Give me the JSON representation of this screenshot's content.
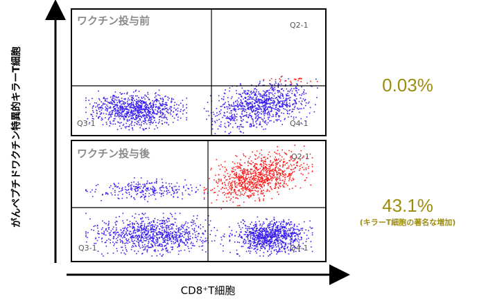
{
  "chart_data": [
    {
      "type": "scatter",
      "title": "ワクチン投与前",
      "xlabel": "CD8⁺T細胞",
      "ylabel": "がんペプチドワクチン特異的キラーT細胞",
      "quadrants": [
        "Q2-1",
        "Q3-1",
        "Q4-1"
      ],
      "value_label": "0.03%",
      "value": 0.03,
      "populations": [
        {
          "name": "cd8-negative",
          "color": "#3a1ff0",
          "x_range": [
            0.05,
            0.45
          ],
          "y_range": [
            0.04,
            0.36
          ],
          "density": "high"
        },
        {
          "name": "cd8-positive",
          "color": "#3a1ff0",
          "x_range": [
            0.52,
            0.97
          ],
          "y_range": [
            0.04,
            0.44
          ],
          "density": "high"
        },
        {
          "name": "killer-t-positive",
          "color": "#ff1a1a",
          "x_range": [
            0.75,
            0.99
          ],
          "y_range": [
            0.4,
            0.48
          ],
          "density": "very-low"
        }
      ]
    },
    {
      "type": "scatter",
      "title": "ワクチン投与後",
      "xlabel": "CD8⁺T細胞",
      "ylabel": "がんペプチドワクチン特異的キラーT細胞",
      "quadrants": [
        "Q2-1",
        "Q3-1",
        "Q4-1"
      ],
      "value_label": "43.1%",
      "value": 43.1,
      "note": "(キラーT細胞の著名な増加)",
      "populations": [
        {
          "name": "cd8-negative",
          "color": "#3a1ff0",
          "x_range": [
            0.05,
            0.6
          ],
          "y_range": [
            0.04,
            0.4
          ],
          "density": "high"
        },
        {
          "name": "cd8-positive",
          "color": "#3a1ff0",
          "x_range": [
            0.62,
            0.95
          ],
          "y_range": [
            0.04,
            0.37
          ],
          "density": "high"
        },
        {
          "name": "upper-left-band",
          "color": "#3a1ff0",
          "x_range": [
            0.05,
            0.52
          ],
          "y_range": [
            0.5,
            0.7
          ],
          "density": "medium"
        },
        {
          "name": "killer-t-positive",
          "color": "#ff1a1a",
          "x_range": [
            0.52,
            0.95
          ],
          "y_range": [
            0.5,
            0.93
          ],
          "density": "high"
        }
      ]
    }
  ],
  "colors": {
    "accent": "#9c8d0f",
    "cd8": "#3a1ff0",
    "killer": "#ff1a1a"
  }
}
